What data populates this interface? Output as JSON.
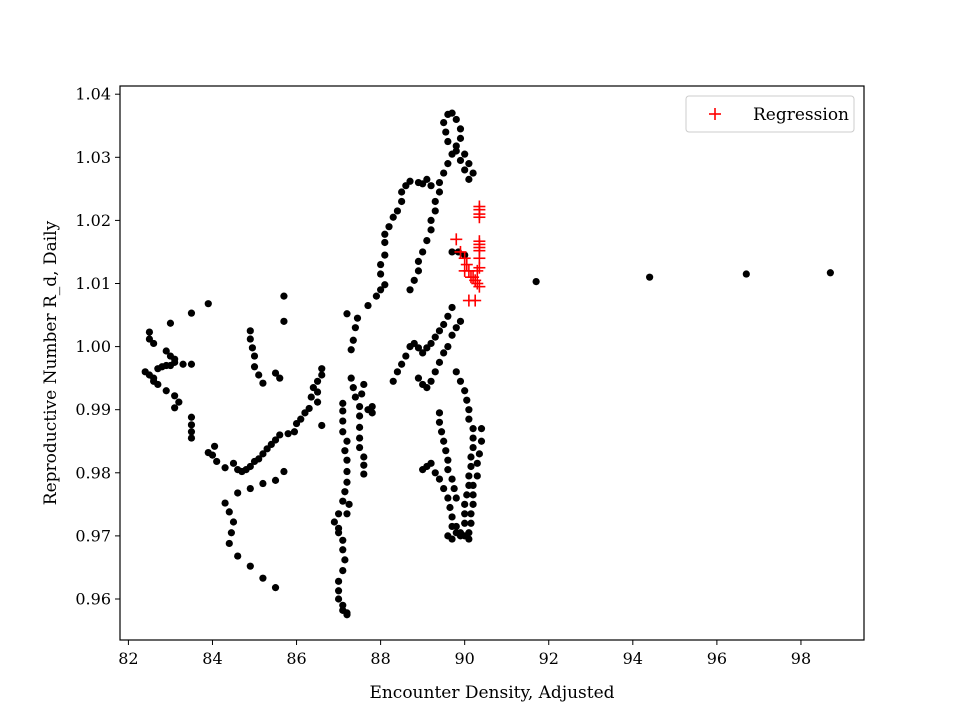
{
  "chart_data": {
    "type": "scatter",
    "xlabel": "Encounter Density, Adjusted",
    "ylabel": "Reproductive Number R_d, Daily",
    "xlim": [
      81.8,
      99.5
    ],
    "ylim": [
      0.9535,
      1.0413
    ],
    "xticks": [
      82,
      84,
      86,
      88,
      90,
      92,
      94,
      96,
      98
    ],
    "yticks": [
      0.96,
      0.97,
      0.98,
      0.99,
      1.0,
      1.01,
      1.02,
      1.03,
      1.04
    ],
    "xtick_labels": [
      "82",
      "84",
      "86",
      "88",
      "90",
      "92",
      "94",
      "96",
      "98"
    ],
    "ytick_labels": [
      "0.96",
      "0.97",
      "0.98",
      "0.99",
      "1.00",
      "1.01",
      "1.02",
      "1.03",
      "1.04"
    ],
    "grid": false,
    "legend_position": "top-right",
    "series": [
      {
        "marker": "circle",
        "color": "#000000",
        "points": [
          [
            82.4,
            0.996
          ],
          [
            82.5,
            0.9955
          ],
          [
            82.6,
            0.995
          ],
          [
            82.7,
            0.9965
          ],
          [
            82.8,
            0.9968
          ],
          [
            82.9,
            0.997
          ],
          [
            83.0,
            0.997
          ],
          [
            83.1,
            0.9975
          ],
          [
            83.3,
            0.9972
          ],
          [
            83.5,
            0.9972
          ],
          [
            82.5,
            1.0023
          ],
          [
            82.5,
            1.0012
          ],
          [
            82.6,
            1.0005
          ],
          [
            82.9,
            0.9993
          ],
          [
            83.0,
            0.9985
          ],
          [
            83.1,
            0.998
          ],
          [
            83.0,
            1.0037
          ],
          [
            82.6,
            0.9945
          ],
          [
            82.7,
            0.994
          ],
          [
            82.9,
            0.993
          ],
          [
            83.1,
            0.9922
          ],
          [
            83.2,
            0.9912
          ],
          [
            83.1,
            0.9903
          ],
          [
            83.5,
            0.9888
          ],
          [
            83.5,
            0.9876
          ],
          [
            83.5,
            0.9865
          ],
          [
            83.5,
            0.9855
          ],
          [
            83.5,
            1.0053
          ],
          [
            83.9,
            1.0068
          ],
          [
            83.9,
            0.9832
          ],
          [
            84.0,
            0.9828
          ],
          [
            84.1,
            0.9818
          ],
          [
            84.05,
            0.9842
          ],
          [
            84.3,
            0.9808
          ],
          [
            84.5,
            0.9815
          ],
          [
            84.6,
            0.9805
          ],
          [
            84.7,
            0.9802
          ],
          [
            84.8,
            0.9805
          ],
          [
            84.9,
            0.981
          ],
          [
            85.0,
            0.9818
          ],
          [
            85.1,
            0.9822
          ],
          [
            85.2,
            0.983
          ],
          [
            85.3,
            0.9838
          ],
          [
            85.4,
            0.9845
          ],
          [
            85.5,
            0.9852
          ],
          [
            85.6,
            0.986
          ],
          [
            85.8,
            0.9862
          ],
          [
            85.95,
            0.9865
          ],
          [
            86.0,
            0.9878
          ],
          [
            84.3,
            0.9752
          ],
          [
            84.4,
            0.9738
          ],
          [
            84.5,
            0.9722
          ],
          [
            84.45,
            0.9705
          ],
          [
            84.4,
            0.9688
          ],
          [
            84.6,
            0.9668
          ],
          [
            84.9,
            0.9652
          ],
          [
            85.2,
            0.9633
          ],
          [
            85.5,
            0.9618
          ],
          [
            84.6,
            0.9768
          ],
          [
            84.9,
            0.9775
          ],
          [
            85.2,
            0.9783
          ],
          [
            85.5,
            0.9788
          ],
          [
            85.7,
            0.9802
          ],
          [
            84.9,
            1.0025
          ],
          [
            84.9,
            1.0012
          ],
          [
            84.95,
            0.9998
          ],
          [
            85.0,
            0.9985
          ],
          [
            85.0,
            0.9968
          ],
          [
            85.1,
            0.9955
          ],
          [
            85.2,
            0.9942
          ],
          [
            85.5,
            0.9958
          ],
          [
            85.6,
            0.995
          ],
          [
            85.7,
            1.008
          ],
          [
            85.7,
            1.004
          ],
          [
            86.1,
            0.9885
          ],
          [
            86.2,
            0.9895
          ],
          [
            86.3,
            0.9902
          ],
          [
            86.35,
            0.992
          ],
          [
            86.4,
            0.9935
          ],
          [
            86.5,
            0.9945
          ],
          [
            86.6,
            0.9955
          ],
          [
            86.6,
            0.9965
          ],
          [
            86.5,
            0.9928
          ],
          [
            86.5,
            0.9912
          ],
          [
            86.6,
            0.9875
          ],
          [
            86.9,
            0.9722
          ],
          [
            87.0,
            0.9712
          ],
          [
            87.0,
            0.9705
          ],
          [
            87.1,
            0.9693
          ],
          [
            87.1,
            0.9678
          ],
          [
            87.15,
            0.9662
          ],
          [
            87.1,
            0.9645
          ],
          [
            87.0,
            0.9628
          ],
          [
            87.0,
            0.9613
          ],
          [
            87.0,
            0.96
          ],
          [
            87.1,
            0.959
          ],
          [
            87.1,
            0.9582
          ],
          [
            87.2,
            0.9578
          ],
          [
            87.2,
            0.9575
          ],
          [
            87.0,
            0.9735
          ],
          [
            87.1,
            0.9755
          ],
          [
            87.15,
            0.977
          ],
          [
            87.2,
            0.9785
          ],
          [
            87.2,
            0.9802
          ],
          [
            87.2,
            0.982
          ],
          [
            87.15,
            0.9835
          ],
          [
            87.2,
            0.985
          ],
          [
            87.1,
            0.9865
          ],
          [
            87.1,
            0.9882
          ],
          [
            87.1,
            0.9898
          ],
          [
            87.1,
            0.991
          ],
          [
            87.2,
            0.9735
          ],
          [
            87.25,
            0.975
          ],
          [
            87.3,
            0.995
          ],
          [
            87.35,
            0.9935
          ],
          [
            87.4,
            0.992
          ],
          [
            87.5,
            0.9905
          ],
          [
            87.5,
            0.989
          ],
          [
            87.5,
            0.9872
          ],
          [
            87.5,
            0.9855
          ],
          [
            87.5,
            0.984
          ],
          [
            87.6,
            0.9825
          ],
          [
            87.6,
            0.9812
          ],
          [
            87.6,
            0.9798
          ],
          [
            87.55,
            0.9925
          ],
          [
            87.6,
            0.994
          ],
          [
            87.3,
            0.9995
          ],
          [
            87.35,
            1.001
          ],
          [
            87.4,
            1.003
          ],
          [
            87.45,
            1.0045
          ],
          [
            87.2,
            1.0052
          ],
          [
            87.7,
            0.99
          ],
          [
            87.8,
            0.9905
          ],
          [
            87.8,
            0.9895
          ],
          [
            87.7,
            1.0065
          ],
          [
            87.9,
            1.008
          ],
          [
            88.0,
            1.009
          ],
          [
            88.1,
            1.0098
          ],
          [
            88.0,
            1.0115
          ],
          [
            88.0,
            1.013
          ],
          [
            88.1,
            1.0145
          ],
          [
            88.1,
            1.0165
          ],
          [
            88.1,
            1.0178
          ],
          [
            88.2,
            1.019
          ],
          [
            88.3,
            1.0205
          ],
          [
            88.4,
            1.0215
          ],
          [
            88.5,
            1.023
          ],
          [
            88.5,
            1.0245
          ],
          [
            88.6,
            1.0255
          ],
          [
            88.7,
            1.0262
          ],
          [
            88.9,
            1.026
          ],
          [
            89.0,
            1.0258
          ],
          [
            89.2,
            1.0255
          ],
          [
            89.1,
            1.0265
          ],
          [
            88.3,
            0.9945
          ],
          [
            88.4,
            0.996
          ],
          [
            88.5,
            0.9972
          ],
          [
            88.6,
            0.9985
          ],
          [
            88.7,
            1.0
          ],
          [
            88.8,
            1.0005
          ],
          [
            88.9,
            0.9998
          ],
          [
            89.0,
            0.999
          ],
          [
            89.1,
            0.9998
          ],
          [
            89.2,
            1.0005
          ],
          [
            89.3,
            1.0015
          ],
          [
            89.4,
            1.0025
          ],
          [
            89.5,
            1.0035
          ],
          [
            89.6,
            1.0048
          ],
          [
            89.7,
            1.0062
          ],
          [
            88.7,
            1.009
          ],
          [
            88.8,
            1.0105
          ],
          [
            88.9,
            1.012
          ],
          [
            88.9,
            1.0135
          ],
          [
            89.0,
            1.015
          ],
          [
            89.1,
            1.0168
          ],
          [
            89.2,
            1.0185
          ],
          [
            89.2,
            1.02
          ],
          [
            89.3,
            1.0215
          ],
          [
            89.3,
            1.023
          ],
          [
            89.4,
            1.0245
          ],
          [
            89.4,
            1.026
          ],
          [
            89.5,
            1.0275
          ],
          [
            89.6,
            1.029
          ],
          [
            89.7,
            1.0305
          ],
          [
            89.8,
            1.0318
          ],
          [
            89.9,
            1.033
          ],
          [
            89.9,
            1.0345
          ],
          [
            89.8,
            1.036
          ],
          [
            89.7,
            1.037
          ],
          [
            89.6,
            1.0368
          ],
          [
            89.5,
            1.0355
          ],
          [
            89.55,
            1.034
          ],
          [
            89.6,
            1.0325
          ],
          [
            89.8,
            1.031
          ],
          [
            89.9,
            1.0295
          ],
          [
            90.0,
            1.028
          ],
          [
            90.1,
            1.0265
          ],
          [
            90.2,
            1.0275
          ],
          [
            90.1,
            1.029
          ],
          [
            90.0,
            1.0305
          ],
          [
            88.9,
            0.995
          ],
          [
            89.0,
            0.994
          ],
          [
            89.1,
            0.9935
          ],
          [
            89.2,
            0.9945
          ],
          [
            89.3,
            0.996
          ],
          [
            89.4,
            0.9975
          ],
          [
            89.5,
            0.999
          ],
          [
            89.6,
            1.0
          ],
          [
            89.7,
            1.0018
          ],
          [
            89.8,
            1.003
          ],
          [
            89.9,
            1.004
          ],
          [
            89.0,
            0.9805
          ],
          [
            89.1,
            0.981
          ],
          [
            89.2,
            0.9815
          ],
          [
            89.3,
            0.98
          ],
          [
            89.4,
            0.979
          ],
          [
            89.5,
            0.9775
          ],
          [
            89.6,
            0.976
          ],
          [
            89.65,
            0.9745
          ],
          [
            89.7,
            0.973
          ],
          [
            89.8,
            0.9715
          ],
          [
            89.9,
            0.9705
          ],
          [
            90.0,
            0.97
          ],
          [
            90.1,
            0.9695
          ],
          [
            89.4,
            0.9895
          ],
          [
            89.4,
            0.988
          ],
          [
            89.45,
            0.9865
          ],
          [
            89.5,
            0.985
          ],
          [
            89.55,
            0.9835
          ],
          [
            89.6,
            0.982
          ],
          [
            89.6,
            0.9805
          ],
          [
            89.7,
            0.979
          ],
          [
            89.75,
            0.9775
          ],
          [
            89.8,
            0.976
          ],
          [
            89.7,
            0.9715
          ],
          [
            89.8,
            0.9705
          ],
          [
            89.9,
            0.97
          ],
          [
            89.6,
            0.97
          ],
          [
            89.7,
            0.9695
          ],
          [
            89.8,
            0.996
          ],
          [
            89.9,
            0.9945
          ],
          [
            90.0,
            0.993
          ],
          [
            90.05,
            0.9915
          ],
          [
            90.1,
            0.99
          ],
          [
            90.1,
            0.9885
          ],
          [
            90.2,
            0.987
          ],
          [
            90.2,
            0.9855
          ],
          [
            90.2,
            0.984
          ],
          [
            90.15,
            0.9825
          ],
          [
            90.15,
            0.981
          ],
          [
            90.1,
            0.9795
          ],
          [
            90.1,
            0.978
          ],
          [
            90.05,
            0.9765
          ],
          [
            90.0,
            0.975
          ],
          [
            90.0,
            0.9735
          ],
          [
            90.0,
            0.972
          ],
          [
            90.4,
            0.987
          ],
          [
            90.4,
            0.985
          ],
          [
            90.35,
            0.983
          ],
          [
            90.3,
            0.9815
          ],
          [
            90.3,
            0.9795
          ],
          [
            90.2,
            0.978
          ],
          [
            90.2,
            0.9765
          ],
          [
            90.2,
            0.975
          ],
          [
            90.15,
            0.9735
          ],
          [
            90.15,
            0.972
          ],
          [
            90.1,
            0.9705
          ],
          [
            89.7,
            1.015
          ],
          [
            89.85,
            1.015
          ],
          [
            90.0,
            1.0145
          ],
          [
            91.7,
            1.0103
          ],
          [
            94.4,
            1.011
          ],
          [
            96.7,
            1.0115
          ],
          [
            98.7,
            1.0117
          ]
        ]
      },
      {
        "name": "Regression",
        "marker": "plus",
        "color": "#ff0000",
        "points": [
          [
            89.8,
            1.017
          ],
          [
            89.9,
            1.015
          ],
          [
            90.0,
            1.014
          ],
          [
            90.05,
            1.013
          ],
          [
            90.0,
            1.012
          ],
          [
            90.1,
            1.012
          ],
          [
            90.15,
            1.011
          ],
          [
            90.2,
            1.011
          ],
          [
            90.25,
            1.0105
          ],
          [
            90.3,
            1.01
          ],
          [
            90.35,
            1.0095
          ],
          [
            90.1,
            1.0073
          ],
          [
            90.25,
            1.0073
          ],
          [
            90.35,
            1.0222
          ],
          [
            90.35,
            1.0217
          ],
          [
            90.35,
            1.021
          ],
          [
            90.35,
            1.0205
          ],
          [
            90.35,
            1.0167
          ],
          [
            90.35,
            1.0162
          ],
          [
            90.35,
            1.0157
          ],
          [
            90.35,
            1.0152
          ],
          [
            90.35,
            1.014
          ],
          [
            90.35,
            1.0125
          ],
          [
            90.3,
            1.012
          ]
        ]
      }
    ]
  }
}
